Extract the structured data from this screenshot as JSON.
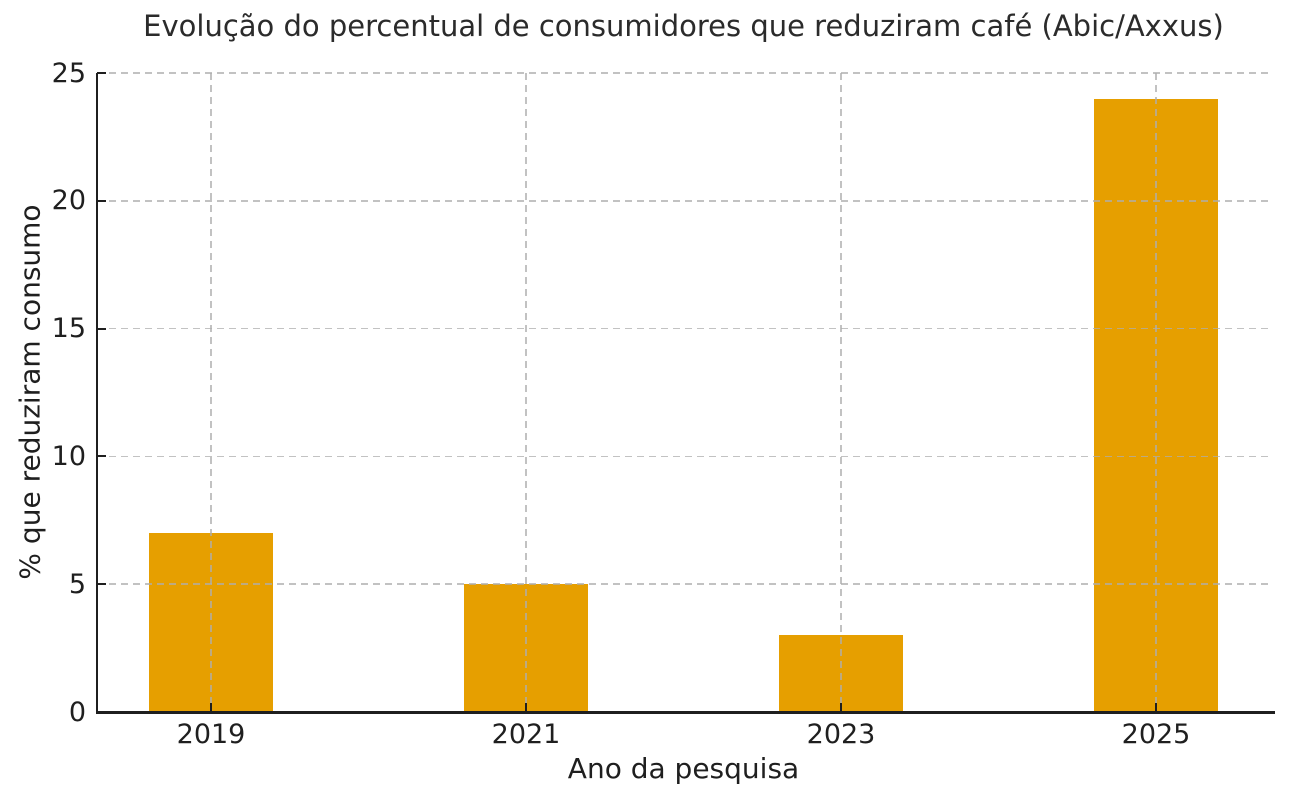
{
  "chart_data": {
    "type": "bar",
    "title": "Evolução do percentual de consumidores que reduziram café (Abic/Axxus)",
    "xlabel": "Ano da pesquisa",
    "ylabel": "% que reduziram consumo",
    "categories": [
      "2019",
      "2021",
      "2023",
      "2025"
    ],
    "values": [
      7,
      5,
      3,
      24
    ],
    "ylim": [
      0,
      25
    ],
    "yticks": [
      0,
      5,
      10,
      15,
      20,
      25
    ],
    "bar_color": "#E69F00",
    "grid": {
      "visible": true,
      "style": "dashed",
      "axis": "both",
      "drawn_above_bars": true
    },
    "legend": "none",
    "colors": {
      "background": "#ffffff",
      "axis": "#1f1f1f",
      "text": "#1f1f1f",
      "gridline": "#c9c9c9"
    }
  }
}
